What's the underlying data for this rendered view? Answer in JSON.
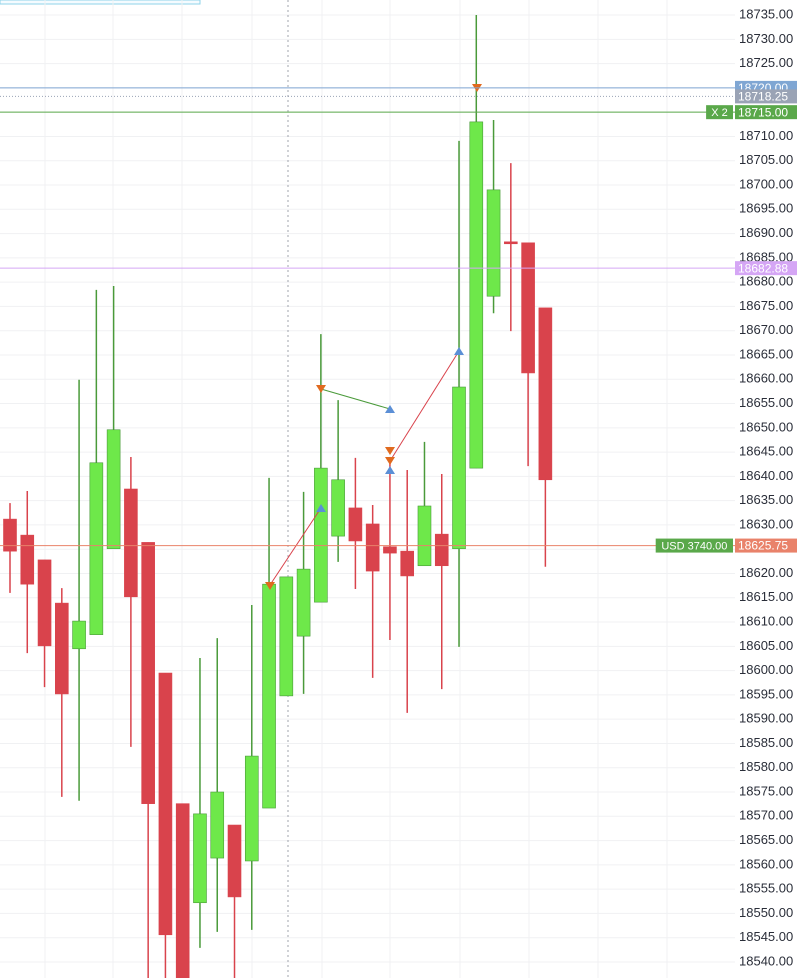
{
  "chart_data": {
    "type": "candlestick",
    "up_color": "#6ee84a",
    "down_color": "#d9434c",
    "open": [
      18631.2,
      18627.9,
      18622.8,
      18613.9,
      18604.5,
      18607.4,
      18625.1,
      18637.4,
      18626.4,
      18599.5,
      18572.6,
      18552.2,
      18561.4,
      18568.2,
      18560.8,
      18571.7,
      18594.8,
      18607.1,
      18614.1,
      18627.7,
      18633.5,
      18630.2,
      18625.5,
      18624.6,
      18621.6,
      18628.1,
      18625.1,
      18641.7,
      18677.1,
      18688.3,
      18688.1,
      18674.7
    ],
    "high": [
      18634.5,
      18637.0,
      18622.8,
      18617.0,
      18659.9,
      18678.4,
      18679.2,
      18644.0,
      18626.4,
      18599.5,
      18572.6,
      18602.6,
      18606.7,
      18568.2,
      18613.5,
      18639.7,
      18619.3,
      18636.8,
      18669.3,
      18655.7,
      18643.8,
      18634.1,
      18643.4,
      18641.3,
      18647.1,
      18640.5,
      18709.1,
      18735.0,
      18713.4,
      18704.5,
      18688.1,
      18674.7
    ],
    "low": [
      18616.0,
      18603.6,
      18596.6,
      18574.0,
      18573.2,
      18607.4,
      18625.1,
      18584.3,
      18534.0,
      18534.0,
      18534.0,
      18542.9,
      18546.2,
      18534.0,
      18546.6,
      18571.7,
      18594.8,
      18595.2,
      18614.1,
      18622.4,
      18616.8,
      18598.5,
      18606.3,
      18591.3,
      18621.6,
      18596.2,
      18604.9,
      18641.7,
      18673.6,
      18669.9,
      18642.1,
      18621.4
    ],
    "close": [
      18624.6,
      18617.8,
      18605.1,
      18595.2,
      18610.2,
      18642.8,
      18649.6,
      18615.2,
      18572.6,
      18545.6,
      18535.0,
      18570.5,
      18575.0,
      18553.4,
      18582.4,
      18617.8,
      18619.3,
      18620.9,
      18641.7,
      18639.3,
      18626.7,
      18620.5,
      18624.2,
      18619.5,
      18633.9,
      18621.6,
      18658.4,
      18713.0,
      18699.0,
      18687.9,
      18661.3,
      18639.3
    ],
    "ylim": [
      18536.7,
      18738.1
    ],
    "yticks": [
      {
        "value": 18540,
        "label": "18540.00"
      },
      {
        "value": 18545,
        "label": "18545.00"
      },
      {
        "value": 18550,
        "label": "18550.00"
      },
      {
        "value": 18555,
        "label": "18555.00"
      },
      {
        "value": 18560,
        "label": "18560.00"
      },
      {
        "value": 18565,
        "label": "18565.00"
      },
      {
        "value": 18570,
        "label": "18570.00"
      },
      {
        "value": 18575,
        "label": "18575.00"
      },
      {
        "value": 18580,
        "label": "18580.00"
      },
      {
        "value": 18585,
        "label": "18585.00"
      },
      {
        "value": 18590,
        "label": "18590.00"
      },
      {
        "value": 18595,
        "label": "18595.00"
      },
      {
        "value": 18600,
        "label": "18600.00"
      },
      {
        "value": 18605,
        "label": "18605.00"
      },
      {
        "value": 18610,
        "label": "18610.00"
      },
      {
        "value": 18615,
        "label": "18615.00"
      },
      {
        "value": 18620,
        "label": "18620.00"
      },
      {
        "value": 18625,
        "label": "18625.00"
      },
      {
        "value": 18630,
        "label": "18630.00"
      },
      {
        "value": 18635,
        "label": "18635.00"
      },
      {
        "value": 18640,
        "label": "18640.00"
      },
      {
        "value": 18645,
        "label": "18645.00"
      },
      {
        "value": 18650,
        "label": "18650.00"
      },
      {
        "value": 18655,
        "label": "18655.00"
      },
      {
        "value": 18660,
        "label": "18660.00"
      },
      {
        "value": 18665,
        "label": "18665.00"
      },
      {
        "value": 18670,
        "label": "18670.00"
      },
      {
        "value": 18675,
        "label": "18675.00"
      },
      {
        "value": 18680,
        "label": "18680.00"
      },
      {
        "value": 18685,
        "label": "18685.00"
      },
      {
        "value": 18690,
        "label": "18690.00"
      },
      {
        "value": 18695,
        "label": "18695.00"
      },
      {
        "value": 18700,
        "label": "18700.00"
      },
      {
        "value": 18705,
        "label": "18705.00"
      },
      {
        "value": 18710,
        "label": "18710.00"
      },
      {
        "value": 18715,
        "label": "18715.00"
      },
      {
        "value": 18720,
        "label": "18720.00"
      },
      {
        "value": 18725,
        "label": "18725.00"
      },
      {
        "value": 18730,
        "label": "18730.00"
      },
      {
        "value": 18735,
        "label": "18735.00"
      }
    ],
    "grid": true,
    "price_lines": [
      {
        "value": 18720,
        "label": "18720.00",
        "color": "#7fa6d3",
        "style": "solid"
      },
      {
        "value": 18718.25,
        "label": "18718.25",
        "color": "#9aa3b5",
        "style": "dotted"
      },
      {
        "value": 18715,
        "label": "18715.00",
        "color": "#5aa84a",
        "style": "solid",
        "tag": "X 2"
      },
      {
        "value": 18682.88,
        "label": "18682.88",
        "color": "#d5a6f5",
        "style": "solid"
      },
      {
        "value": 18625.75,
        "label": "18625.75",
        "color": "#e9826a",
        "style": "solid",
        "tag": "USD 3740.00"
      }
    ]
  }
}
